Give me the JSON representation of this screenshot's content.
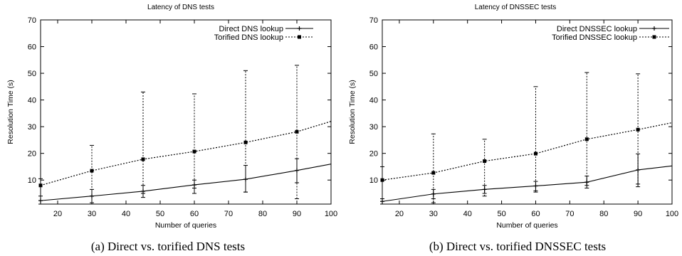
{
  "chart_data": [
    {
      "type": "line",
      "title": "Latency of DNS tests",
      "xlabel": "Number of queries",
      "ylabel": "Resolution Time (s)",
      "caption": "(a)  Direct vs. torified DNS tests",
      "xlim": [
        15,
        100
      ],
      "ylim": [
        1,
        70
      ],
      "xticks": [
        20,
        30,
        40,
        50,
        60,
        70,
        80,
        90,
        100
      ],
      "yticks": [
        10,
        20,
        30,
        40,
        50,
        60,
        70
      ],
      "legend_position": "top-right",
      "series": [
        {
          "name": "Direct DNS lookup",
          "style": "solid",
          "marker": "plus",
          "x": [
            15,
            30,
            45,
            60,
            75,
            90,
            100
          ],
          "y": [
            2.3,
            4.0,
            5.8,
            8.2,
            10.3,
            13.6,
            16.0
          ],
          "err_low": [
            1.0,
            1.5,
            3.5,
            5.0,
            5.5,
            9.0,
            null
          ],
          "err_high": [
            4.0,
            6.5,
            8.0,
            10.0,
            15.5,
            18.0,
            null
          ]
        },
        {
          "name": "Torified DNS lookup",
          "style": "dotted",
          "marker": "square",
          "x": [
            15,
            30,
            45,
            60,
            75,
            90,
            100
          ],
          "y": [
            8.0,
            13.5,
            17.8,
            20.7,
            24.1,
            28.1,
            32.0
          ],
          "err_low": [
            1.0,
            4.0,
            5.0,
            7.0,
            5.5,
            3.0,
            null
          ],
          "err_high": [
            10.5,
            23.0,
            43.0,
            42.3,
            51.0,
            53.0,
            null
          ]
        }
      ]
    },
    {
      "type": "line",
      "title": "Latency of DNSSEC tests",
      "xlabel": "Number of queries",
      "ylabel": "Resolution Time (s)",
      "caption": "(b)  Direct vs. torified DNSSEC tests",
      "xlim": [
        15,
        100
      ],
      "ylim": [
        1,
        70
      ],
      "xticks": [
        20,
        30,
        40,
        50,
        60,
        70,
        80,
        90,
        100
      ],
      "yticks": [
        10,
        20,
        30,
        40,
        50,
        60,
        70
      ],
      "legend_position": "top-right",
      "series": [
        {
          "name": "Direct DNSSEC lookup",
          "style": "solid",
          "marker": "plus",
          "x": [
            15,
            30,
            45,
            60,
            75,
            90,
            100
          ],
          "y": [
            2.0,
            4.8,
            6.5,
            7.8,
            9.2,
            13.8,
            15.3
          ],
          "err_low": [
            1.0,
            3.0,
            5.0,
            6.0,
            7.0,
            7.5,
            null
          ],
          "err_high": [
            3.0,
            6.5,
            8.0,
            9.5,
            11.5,
            19.8,
            null
          ]
        },
        {
          "name": "Torified DNSSEC lookup",
          "style": "dotted",
          "marker": "square",
          "x": [
            15,
            30,
            45,
            60,
            75,
            90,
            100
          ],
          "y": [
            10.0,
            12.7,
            17.1,
            19.9,
            25.3,
            28.9,
            31.5
          ],
          "err_low": [
            1.0,
            1.5,
            4.0,
            5.5,
            8.0,
            8.5,
            null
          ],
          "err_high": [
            15.0,
            27.3,
            25.3,
            45.0,
            50.3,
            49.8,
            null
          ]
        }
      ]
    }
  ]
}
